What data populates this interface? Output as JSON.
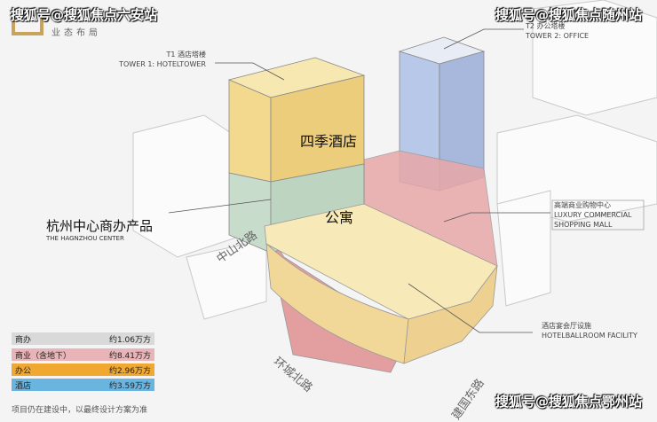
{
  "header": {
    "section_title": "业态布局"
  },
  "watermarks": [
    "搜狐号@搜狐焦点六安站",
    "搜狐号@搜狐焦点随州站",
    "搜狐号@搜狐焦点鄂州站"
  ],
  "labels": {
    "tower1_cn": "T1 酒店塔楼",
    "tower1_en": "TOWER 1: HOTELTOWER",
    "tower2_cn": "T2 办公塔楼",
    "tower2_en": "TOWER 2: OFFICE",
    "mall_cn": "高端商业购物中心",
    "mall_en1": "LUXURY COMMERCIAL",
    "mall_en2": "SHOPPING MALL",
    "ballroom_cn": "酒店宴会厅设施",
    "ballroom_en": "HOTELBALLROOM FACILITY",
    "hotel_name": "四季酒店",
    "apartment": "公寓",
    "project_cn": "杭州中心商办产品",
    "project_en": "THE HAGNZHOU CENTER",
    "road1": "中山北路",
    "road2": "环城北路",
    "road3": "建国东路"
  },
  "legend": [
    {
      "name": "商办",
      "value": "约1.06万方",
      "color": "#d9d9d9"
    },
    {
      "name": "商业（含地下）",
      "value": "约8.41万方",
      "color": "#e8b4b8"
    },
    {
      "name": "办公",
      "value": "约2.96万方",
      "color": "#f0a830"
    },
    {
      "name": "酒店",
      "value": "约3.59万方",
      "color": "#6ab4e0"
    }
  ],
  "footnote": "项目仍在建设中，以最终设计方案为准",
  "colors": {
    "hotel": "#f2d98e",
    "apartment": "#c8dccb",
    "office": "#b8c8e8",
    "retail": "#e8a8a8",
    "mall": "#f6e6a8"
  }
}
